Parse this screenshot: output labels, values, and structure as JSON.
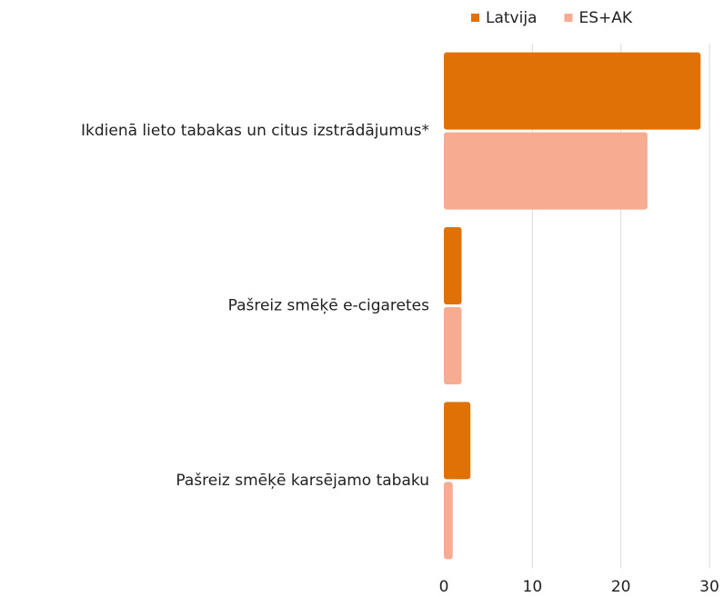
{
  "chart_data": {
    "type": "bar",
    "orientation": "horizontal",
    "categories": [
      "Ikdienā lieto tabakas un citus izstrādājumus*",
      "Pašreiz smēķē e-cigaretes",
      "Pašreiz smēķē karsējamo tabaku"
    ],
    "series": [
      {
        "name": "Latvija",
        "color": "#e07106",
        "values": [
          29,
          2,
          3
        ]
      },
      {
        "name": "ES+AK",
        "color": "#f7ab90",
        "values": [
          23,
          2,
          1
        ]
      }
    ],
    "xlim": [
      0,
      30
    ],
    "xticks": [
      0,
      10,
      20,
      30
    ],
    "grid": true,
    "legend": "top"
  }
}
